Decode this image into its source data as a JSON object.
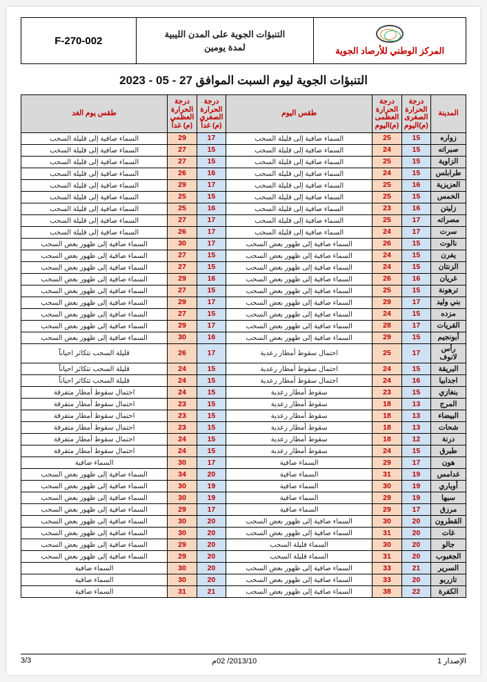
{
  "header": {
    "org_name": "المركز الوطني للأرصاد الجوية",
    "mid_line1": "التنبؤات الجوية على المدن الليبية",
    "mid_line2": "لمدة يومين",
    "code": "F-270-002"
  },
  "main_title": "التنبؤات الجوية ليوم السبت الموافق 27 - 05 - 2023",
  "columns": {
    "city": "المدينة",
    "min_today": "درجة الحرارة الصغرى (م)اليوم",
    "max_today": "درجة الحرارة العظمى (م)اليوم",
    "desc_today": "طقس اليوم",
    "min_tmrw": "درجة الحرارة الصغرى (م) غداً",
    "max_tmrw": "درجة الحرارة العظمى (م) غداً",
    "desc_tmrw": "طقس يوم الغد"
  },
  "rows": [
    {
      "city": "زواره",
      "min_t": "15",
      "max_t": "25",
      "desc_t": "السماء صافية إلى قليلة السحب",
      "min_m": "17",
      "max_m": "29",
      "desc_m": "السماء صافية إلى قليلة السحب"
    },
    {
      "city": "صبراته",
      "min_t": "15",
      "max_t": "24",
      "desc_t": "السماء صافية إلى قليلة السحب",
      "min_m": "15",
      "max_m": "27",
      "desc_m": "السماء صافية إلى قليلة السحب"
    },
    {
      "city": "الزاوية",
      "min_t": "15",
      "max_t": "25",
      "desc_t": "السماء صافية إلى قليلة السحب",
      "min_m": "15",
      "max_m": "27",
      "desc_m": "السماء صافية إلى قليلة السحب"
    },
    {
      "city": "طرابلس",
      "min_t": "15",
      "max_t": "24",
      "desc_t": "السماء صافية إلى قليلة السحب",
      "min_m": "16",
      "max_m": "26",
      "desc_m": "السماء صافية إلى قليلة السحب"
    },
    {
      "city": "العزيزية",
      "min_t": "16",
      "max_t": "25",
      "desc_t": "السماء صافية إلى قليلة السحب",
      "min_m": "17",
      "max_m": "29",
      "desc_m": "السماء صافية إلى قليلة السحب"
    },
    {
      "city": "الخمس",
      "min_t": "15",
      "max_t": "25",
      "desc_t": "السماء صافية إلى قليلة السحب",
      "min_m": "15",
      "max_m": "25",
      "desc_m": "السماء صافية إلى قليلة السحب"
    },
    {
      "city": "زليتن",
      "min_t": "16",
      "max_t": "23",
      "desc_t": "السماء صافية إلى قليلة السحب",
      "min_m": "16",
      "max_m": "25",
      "desc_m": "السماء صافية إلى قليلة السحب"
    },
    {
      "city": "مصراته",
      "min_t": "17",
      "max_t": "25",
      "desc_t": "السماء صافية إلى قليلة السحب",
      "min_m": "17",
      "max_m": "27",
      "desc_m": "السماء صافية إلى قليلة السحب"
    },
    {
      "city": "سرت",
      "min_t": "17",
      "max_t": "24",
      "desc_t": "السماء صافية إلى قليلة السحب",
      "min_m": "17",
      "max_m": "26",
      "desc_m": "السماء صافية إلى قليلة السحب"
    },
    {
      "city": "نالوت",
      "min_t": "15",
      "max_t": "26",
      "desc_t": "السماء صافية إلى ظهور بعض السحب",
      "min_m": "17",
      "max_m": "30",
      "desc_m": "السماء صافية إلى ظهور بعض السحب"
    },
    {
      "city": "يفرن",
      "min_t": "15",
      "max_t": "24",
      "desc_t": "السماء صافية إلى ظهور بعض السحب",
      "min_m": "15",
      "max_m": "27",
      "desc_m": "السماء صافية إلى ظهور بعض السحب"
    },
    {
      "city": "الزنتان",
      "min_t": "15",
      "max_t": "24",
      "desc_t": "السماء صافية إلى ظهور بعض السحب",
      "min_m": "15",
      "max_m": "27",
      "desc_m": "السماء صافية إلى ظهور بعض السحب"
    },
    {
      "city": "غريان",
      "min_t": "16",
      "max_t": "26",
      "desc_t": "السماء صافية إلى ظهور بعض السحب",
      "min_m": "16",
      "max_m": "29",
      "desc_m": "السماء صافية إلى ظهور بعض السحب"
    },
    {
      "city": "ترهونة",
      "min_t": "15",
      "max_t": "25",
      "desc_t": "السماء صافية إلى ظهور بعض السحب",
      "min_m": "15",
      "max_m": "27",
      "desc_m": "السماء صافية إلى ظهور بعض السحب"
    },
    {
      "city": "بني وليد",
      "min_t": "17",
      "max_t": "29",
      "desc_t": "السماء صافية إلى ظهور بعض السحب",
      "min_m": "17",
      "max_m": "29",
      "desc_m": "السماء صافية إلى ظهور بعض السحب"
    },
    {
      "city": "مزده",
      "min_t": "15",
      "max_t": "24",
      "desc_t": "السماء صافية إلى ظهور بعض السحب",
      "min_m": "15",
      "max_m": "27",
      "desc_m": "السماء صافية إلى ظهور بعض السحب"
    },
    {
      "city": "القريات",
      "min_t": "17",
      "max_t": "28",
      "desc_t": "السماء صافية إلى ظهور بعض السحب",
      "min_m": "17",
      "max_m": "29",
      "desc_m": "السماء صافية إلى ظهور بعض السحب"
    },
    {
      "city": "أبونجيم",
      "min_t": "15",
      "max_t": "29",
      "desc_t": "السماء صافية إلى ظهور بعض السحب",
      "min_m": "16",
      "max_m": "30",
      "desc_m": "السماء صافية إلى ظهور بعض السحب"
    },
    {
      "city": "رأس لانوف",
      "min_t": "17",
      "max_t": "25",
      "desc_t": "احتمال سقوط أمطار رعدية",
      "min_m": "17",
      "max_m": "26",
      "desc_m": "قليلة السحب تتكاثر احياناً"
    },
    {
      "city": "البريقة",
      "min_t": "15",
      "max_t": "24",
      "desc_t": "احتمال سقوط أمطار رعدية",
      "min_m": "15",
      "max_m": "24",
      "desc_m": "قليلة السحب تتكاثر احياناً"
    },
    {
      "city": "اجدابيا",
      "min_t": "16",
      "max_t": "24",
      "desc_t": "احتمال سقوط أمطار رعدية",
      "min_m": "15",
      "max_m": "24",
      "desc_m": "قليلة السحب تتكاثر احياناً"
    },
    {
      "city": "بنغازي",
      "min_t": "15",
      "max_t": "23",
      "desc_t": "سقوط أمطار رعدية",
      "min_m": "15",
      "max_m": "24",
      "desc_m": "احتمال سقوط أمطار متفرقة"
    },
    {
      "city": "المرج",
      "min_t": "13",
      "max_t": "18",
      "desc_t": "سقوط أمطار رعدية",
      "min_m": "15",
      "max_m": "23",
      "desc_m": "احتمال سقوط أمطار متفرقة"
    },
    {
      "city": "البيضاء",
      "min_t": "13",
      "max_t": "18",
      "desc_t": "سقوط أمطار رعدية",
      "min_m": "15",
      "max_m": "23",
      "desc_m": "احتمال سقوط أمطار متفرقة"
    },
    {
      "city": "شحات",
      "min_t": "13",
      "max_t": "18",
      "desc_t": "سقوط أمطار رعدية",
      "min_m": "15",
      "max_m": "23",
      "desc_m": "احتمال سقوط أمطار متفرقة"
    },
    {
      "city": "درنة",
      "min_t": "12",
      "max_t": "18",
      "desc_t": "سقوط أمطار رعدية",
      "min_m": "15",
      "max_m": "24",
      "desc_m": "احتمال سقوط أمطار متفرقة"
    },
    {
      "city": "طبرق",
      "min_t": "15",
      "max_t": "24",
      "desc_t": "سقوط أمطار رعدية",
      "min_m": "15",
      "max_m": "24",
      "desc_m": "احتمال سقوط أمطار متفرقة"
    },
    {
      "city": "هون",
      "min_t": "17",
      "max_t": "29",
      "desc_t": "السماء صافية",
      "min_m": "17",
      "max_m": "30",
      "desc_m": "السماء صافية"
    },
    {
      "city": "غدامس",
      "min_t": "19",
      "max_t": "31",
      "desc_t": "السماء صافية",
      "min_m": "20",
      "max_m": "34",
      "desc_m": "السماء صافية إلى ظهور بعض السحب"
    },
    {
      "city": "أوباري",
      "min_t": "19",
      "max_t": "30",
      "desc_t": "السماء صافية",
      "min_m": "19",
      "max_m": "30",
      "desc_m": "السماء صافية إلى ظهور بعض السحب"
    },
    {
      "city": "سبها",
      "min_t": "19",
      "max_t": "29",
      "desc_t": "السماء صافية",
      "min_m": "19",
      "max_m": "30",
      "desc_m": "السماء صافية إلى ظهور بعض السحب"
    },
    {
      "city": "مرزق",
      "min_t": "17",
      "max_t": "29",
      "desc_t": "السماء صافية",
      "min_m": "17",
      "max_m": "29",
      "desc_m": "السماء صافية إلى ظهور بعض السحب"
    },
    {
      "city": "القطرون",
      "min_t": "20",
      "max_t": "30",
      "desc_t": "السماء صافية إلى ظهور بعض السحب",
      "min_m": "20",
      "max_m": "30",
      "desc_m": "السماء صافية إلى ظهور بعض السحب"
    },
    {
      "city": "غات",
      "min_t": "20",
      "max_t": "31",
      "desc_t": "السماء صافية إلى ظهور بعض السحب",
      "min_m": "20",
      "max_m": "30",
      "desc_m": "السماء صافية إلى ظهور بعض السحب"
    },
    {
      "city": "جالو",
      "min_t": "20",
      "max_t": "30",
      "desc_t": "السماء قليلة السحب",
      "min_m": "20",
      "max_m": "29",
      "desc_m": "السماء صافية إلى ظهور بعض السحب"
    },
    {
      "city": "الجغبوب",
      "min_t": "20",
      "max_t": "31",
      "desc_t": "السماء قليلة السحب",
      "min_m": "20",
      "max_m": "29",
      "desc_m": "السماء صافية إلى ظهور بعض السحب"
    },
    {
      "city": "السرير",
      "min_t": "21",
      "max_t": "33",
      "desc_t": "السماء صافية إلى ظهور بعض السحب",
      "min_m": "20",
      "max_m": "30",
      "desc_m": "السماء صافية"
    },
    {
      "city": "تازربو",
      "min_t": "20",
      "max_t": "33",
      "desc_t": "السماء صافية إلى ظهور بعض السحب",
      "min_m": "20",
      "max_m": "30",
      "desc_m": "السماء صافية"
    },
    {
      "city": "الكفرة",
      "min_t": "22",
      "max_t": "38",
      "desc_t": "السماء صافية إلى ظهور بعض السحب",
      "min_m": "21",
      "max_m": "31",
      "desc_m": "السماء صافية"
    }
  ],
  "footer": {
    "right": "الإصدار 1",
    "center": "2013/10/ 02م",
    "left": "3/3"
  }
}
